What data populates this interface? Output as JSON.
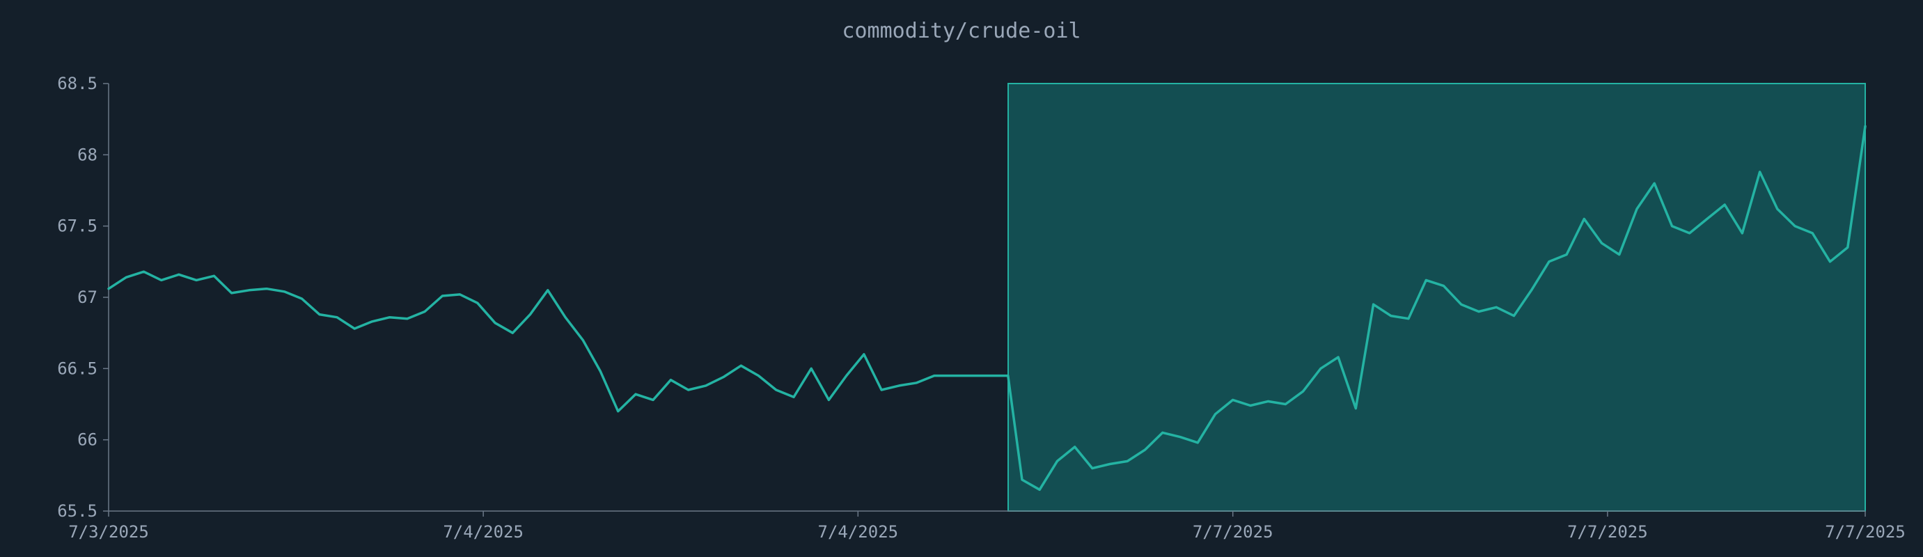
{
  "chart_data": {
    "type": "line",
    "title": "commodity/crude-oil",
    "xlabel": "",
    "ylabel": "",
    "ylim": [
      65.5,
      68.5
    ],
    "y_ticks": [
      "65.5",
      "66",
      "66.5",
      "67",
      "67.5",
      "68",
      "68.5"
    ],
    "x_ticks": [
      "7/3/2025",
      "7/4/2025",
      "7/4/2025",
      "7/7/2025",
      "7/7/2025",
      "7/7/2025"
    ],
    "x_tick_positions": [
      0,
      0.2133,
      0.4266,
      0.64,
      0.8533,
      1.0
    ],
    "grid": false,
    "legend": "none",
    "highlight_region": {
      "x_start": 0.5121,
      "x_end": 1.0,
      "fill": "#134e52",
      "stroke": "#24b3a3"
    },
    "line_color": "#24b3a3",
    "series": [
      {
        "x": [
          0.0,
          0.01,
          0.02,
          0.03,
          0.04,
          0.05,
          0.06,
          0.07,
          0.08,
          0.09,
          0.1,
          0.11,
          0.12,
          0.13,
          0.14,
          0.15,
          0.16,
          0.17,
          0.18,
          0.19,
          0.2,
          0.21,
          0.22,
          0.23,
          0.24,
          0.25,
          0.26,
          0.27,
          0.28,
          0.29,
          0.3,
          0.31,
          0.32,
          0.33,
          0.34,
          0.35,
          0.36,
          0.37,
          0.38,
          0.39,
          0.4,
          0.41,
          0.42,
          0.43,
          0.44,
          0.45,
          0.46,
          0.47,
          0.48,
          0.49,
          0.5,
          0.51,
          0.512,
          0.52,
          0.53,
          0.54,
          0.55,
          0.56,
          0.57,
          0.58,
          0.59,
          0.6,
          0.61,
          0.62,
          0.63,
          0.64,
          0.65,
          0.66,
          0.67,
          0.68,
          0.69,
          0.7,
          0.71,
          0.72,
          0.73,
          0.74,
          0.75,
          0.76,
          0.77,
          0.78,
          0.79,
          0.8,
          0.81,
          0.82,
          0.83,
          0.84,
          0.85,
          0.86,
          0.87,
          0.88,
          0.89,
          0.9,
          0.91,
          0.92,
          0.93,
          0.94,
          0.95,
          0.96,
          0.97,
          0.98,
          0.99,
          1.0
        ],
        "values": [
          67.06,
          67.14,
          67.18,
          67.12,
          67.16,
          67.12,
          67.15,
          67.03,
          67.05,
          67.06,
          67.04,
          66.99,
          66.88,
          66.86,
          66.78,
          66.83,
          66.86,
          66.85,
          66.9,
          67.01,
          67.02,
          66.96,
          66.82,
          66.75,
          66.88,
          67.05,
          66.86,
          66.7,
          66.48,
          66.2,
          66.32,
          66.28,
          66.42,
          66.35,
          66.38,
          66.44,
          66.52,
          66.45,
          66.35,
          66.3,
          66.5,
          66.28,
          66.45,
          66.6,
          66.35,
          66.38,
          66.4,
          66.45,
          66.45,
          66.45,
          66.45,
          66.45,
          66.45,
          65.72,
          65.65,
          65.85,
          65.95,
          65.8,
          65.83,
          65.85,
          65.93,
          66.05,
          66.02,
          65.98,
          66.18,
          66.28,
          66.24,
          66.27,
          66.25,
          66.34,
          66.5,
          66.58,
          66.22,
          66.95,
          66.87,
          66.85,
          67.12,
          67.08,
          66.95,
          66.9,
          66.93,
          66.87,
          67.05,
          67.25,
          67.3,
          67.55,
          67.38,
          67.3,
          67.62,
          67.8,
          67.5,
          67.45,
          67.55,
          67.65,
          67.45,
          67.88,
          67.62,
          67.5,
          67.45,
          67.25,
          67.35,
          68.2
        ]
      }
    ]
  }
}
